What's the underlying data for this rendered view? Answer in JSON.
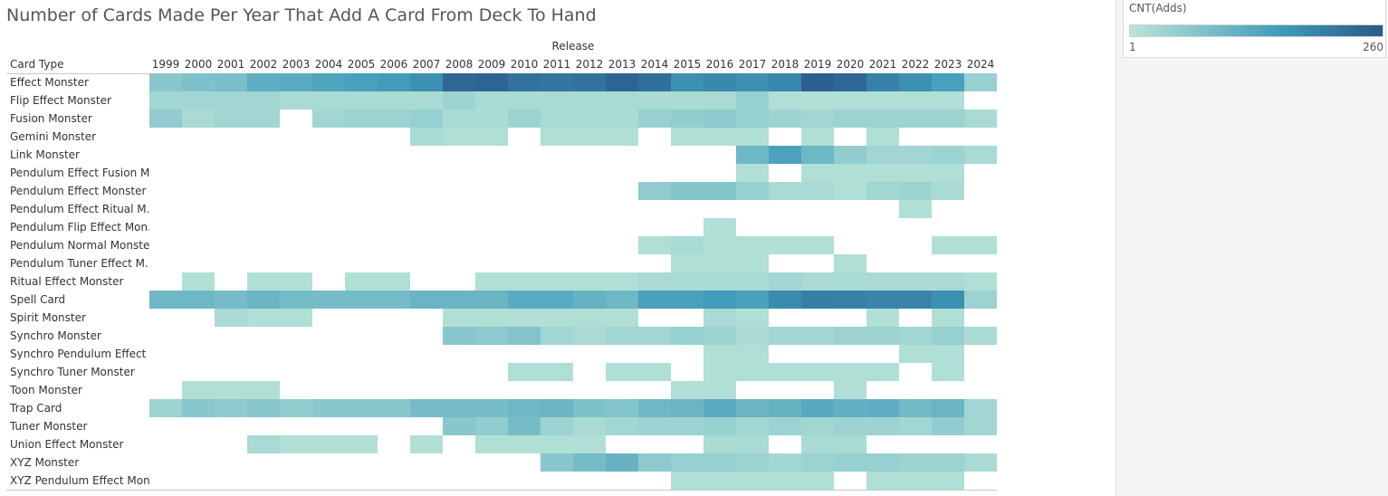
{
  "chart_data": {
    "type": "heatmap",
    "title": "Number of Cards Made Per Year That Add A Card From Deck To Hand",
    "column_header": "Release",
    "row_header": "Card Type",
    "x": [
      1999,
      2000,
      2001,
      2002,
      2003,
      2004,
      2005,
      2006,
      2007,
      2008,
      2009,
      2010,
      2011,
      2012,
      2013,
      2014,
      2015,
      2016,
      2017,
      2018,
      2019,
      2020,
      2021,
      2022,
      2023,
      2024
    ],
    "rows": [
      {
        "label": "Effect Monster",
        "values": [
          40,
          50,
          55,
          90,
          95,
          110,
          120,
          130,
          150,
          230,
          240,
          210,
          200,
          210,
          240,
          215,
          150,
          165,
          150,
          170,
          250,
          230,
          180,
          150,
          120,
          25
        ]
      },
      {
        "label": "Flip Effect Monster",
        "values": [
          15,
          15,
          15,
          15,
          10,
          10,
          10,
          10,
          10,
          20,
          10,
          10,
          10,
          10,
          10,
          10,
          10,
          10,
          25,
          5,
          5,
          5,
          5,
          5,
          5,
          null
        ]
      },
      {
        "label": "Fusion Monster",
        "values": [
          30,
          10,
          15,
          15,
          null,
          15,
          20,
          20,
          25,
          10,
          8,
          20,
          10,
          10,
          10,
          25,
          30,
          35,
          25,
          20,
          15,
          20,
          20,
          20,
          20,
          10
        ]
      },
      {
        "label": "Gemini Monster",
        "values": [
          null,
          null,
          null,
          null,
          null,
          null,
          null,
          null,
          10,
          5,
          5,
          null,
          5,
          5,
          5,
          null,
          5,
          5,
          5,
          null,
          5,
          null,
          5,
          null,
          null,
          null
        ]
      },
      {
        "label": "Link Monster",
        "values": [
          null,
          null,
          null,
          null,
          null,
          null,
          null,
          null,
          null,
          null,
          null,
          null,
          null,
          null,
          null,
          null,
          null,
          null,
          70,
          115,
          70,
          30,
          15,
          15,
          20,
          10
        ]
      },
      {
        "label": "Pendulum Effect Fusion M..",
        "values": [
          null,
          null,
          null,
          null,
          null,
          null,
          null,
          null,
          null,
          null,
          null,
          null,
          null,
          null,
          null,
          null,
          null,
          null,
          5,
          null,
          5,
          5,
          5,
          5,
          5,
          null
        ]
      },
      {
        "label": "Pendulum Effect Monster",
        "values": [
          null,
          null,
          null,
          null,
          null,
          null,
          null,
          null,
          null,
          null,
          null,
          null,
          null,
          null,
          null,
          30,
          45,
          45,
          25,
          10,
          10,
          5,
          15,
          20,
          10,
          null
        ]
      },
      {
        "label": "Pendulum Effect Ritual M..",
        "values": [
          null,
          null,
          null,
          null,
          null,
          null,
          null,
          null,
          null,
          null,
          null,
          null,
          null,
          null,
          null,
          null,
          null,
          null,
          null,
          null,
          null,
          null,
          null,
          5,
          null,
          null
        ]
      },
      {
        "label": "Pendulum Flip Effect Mon..",
        "values": [
          null,
          null,
          null,
          null,
          null,
          null,
          null,
          null,
          null,
          null,
          null,
          null,
          null,
          null,
          null,
          null,
          null,
          5,
          null,
          null,
          null,
          null,
          null,
          null,
          null,
          null
        ]
      },
      {
        "label": "Pendulum Normal Monster",
        "values": [
          null,
          null,
          null,
          null,
          null,
          null,
          null,
          null,
          null,
          null,
          null,
          null,
          null,
          null,
          null,
          5,
          10,
          5,
          5,
          5,
          5,
          null,
          null,
          null,
          5,
          5
        ]
      },
      {
        "label": "Pendulum Tuner Effect M..",
        "values": [
          null,
          null,
          null,
          null,
          null,
          null,
          null,
          null,
          null,
          null,
          null,
          null,
          null,
          null,
          null,
          null,
          5,
          5,
          5,
          null,
          null,
          5,
          null,
          null,
          null,
          null
        ]
      },
      {
        "label": "Ritual Effect Monster",
        "values": [
          null,
          5,
          null,
          5,
          5,
          null,
          5,
          5,
          null,
          null,
          5,
          5,
          5,
          5,
          5,
          10,
          10,
          10,
          10,
          15,
          10,
          10,
          10,
          10,
          10,
          5
        ]
      },
      {
        "label": "Spell Card",
        "values": [
          70,
          70,
          60,
          75,
          60,
          60,
          60,
          60,
          75,
          75,
          75,
          95,
          95,
          80,
          70,
          120,
          120,
          130,
          120,
          160,
          185,
          180,
          175,
          175,
          150,
          20
        ]
      },
      {
        "label": "Spirit Monster",
        "values": [
          null,
          null,
          10,
          5,
          5,
          null,
          null,
          null,
          null,
          5,
          5,
          5,
          5,
          5,
          5,
          null,
          null,
          10,
          5,
          null,
          null,
          null,
          5,
          null,
          5,
          null
        ]
      },
      {
        "label": "Synchro Monster",
        "values": [
          null,
          null,
          null,
          null,
          null,
          null,
          null,
          null,
          null,
          40,
          35,
          45,
          15,
          10,
          15,
          15,
          25,
          20,
          10,
          15,
          15,
          20,
          20,
          15,
          25,
          10
        ]
      },
      {
        "label": "Synchro Pendulum Effect ..",
        "values": [
          null,
          null,
          null,
          null,
          null,
          null,
          null,
          null,
          null,
          null,
          null,
          null,
          null,
          null,
          null,
          null,
          null,
          5,
          5,
          null,
          null,
          null,
          null,
          5,
          5,
          null
        ]
      },
      {
        "label": "Synchro Tuner Monster",
        "values": [
          null,
          null,
          null,
          null,
          null,
          null,
          null,
          null,
          null,
          null,
          null,
          5,
          5,
          null,
          5,
          5,
          null,
          5,
          5,
          5,
          5,
          5,
          5,
          null,
          5,
          null
        ]
      },
      {
        "label": "Toon Monster",
        "values": [
          null,
          5,
          5,
          5,
          null,
          null,
          null,
          null,
          null,
          null,
          null,
          null,
          null,
          null,
          null,
          null,
          5,
          5,
          null,
          null,
          null,
          5,
          null,
          null,
          null,
          null
        ]
      },
      {
        "label": "Trap Card",
        "values": [
          20,
          40,
          35,
          40,
          30,
          40,
          40,
          40,
          60,
          60,
          60,
          70,
          75,
          50,
          45,
          70,
          75,
          95,
          75,
          80,
          100,
          85,
          90,
          65,
          75,
          15
        ]
      },
      {
        "label": "Tuner Monster",
        "values": [
          null,
          null,
          null,
          null,
          null,
          null,
          null,
          null,
          null,
          40,
          30,
          60,
          20,
          10,
          15,
          20,
          20,
          25,
          15,
          20,
          15,
          20,
          20,
          15,
          30,
          15
        ]
      },
      {
        "label": "Union Effect Monster",
        "values": [
          null,
          null,
          null,
          10,
          5,
          5,
          5,
          null,
          5,
          null,
          5,
          5,
          5,
          5,
          null,
          null,
          null,
          10,
          10,
          null,
          10,
          10,
          null,
          null,
          null,
          null
        ]
      },
      {
        "label": "XYZ Monster",
        "values": [
          null,
          null,
          null,
          null,
          null,
          null,
          null,
          null,
          null,
          null,
          null,
          null,
          40,
          60,
          80,
          35,
          25,
          25,
          20,
          15,
          20,
          25,
          25,
          20,
          20,
          10
        ]
      },
      {
        "label": "XYZ Pendulum Effect Mon..",
        "values": [
          null,
          null,
          null,
          null,
          null,
          null,
          null,
          null,
          null,
          null,
          null,
          null,
          null,
          null,
          null,
          null,
          5,
          5,
          5,
          5,
          5,
          null,
          5,
          5,
          5,
          null
        ]
      }
    ],
    "color_scale": {
      "min": 1,
      "max": 260,
      "low_color": "#b9e4d8",
      "high_color": "#2a5a8c",
      "mid_color": "#3f9bba"
    },
    "legend": {
      "title": "CNT(Adds)",
      "min_label": "1",
      "max_label": "260",
      "position": "top-right"
    }
  }
}
